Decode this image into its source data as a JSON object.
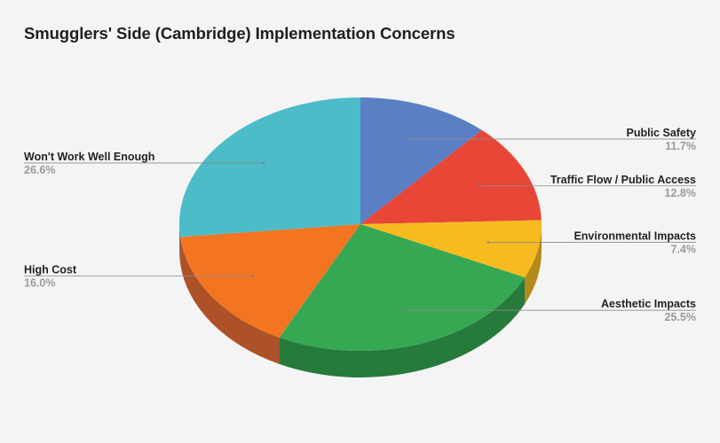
{
  "title": "Smugglers' Side (Cambridge) Implementation Concerns",
  "chart_data": {
    "type": "pie",
    "title": "Smugglers' Side (Cambridge) Implementation Concerns",
    "style": "3d",
    "legend": "none",
    "start_angle": "12 o'clock, clockwise",
    "slices": [
      {
        "label": "Public Safety",
        "value": 11.7,
        "value_label": "11.7%",
        "color": "#5b7fc5",
        "side_color": "#3f5c97"
      },
      {
        "label": "Traffic Flow / Public Access",
        "value": 12.8,
        "value_label": "12.8%",
        "color": "#e84637",
        "side_color": "#a8322a"
      },
      {
        "label": "Environmental Impacts",
        "value": 7.4,
        "value_label": "7.4%",
        "color": "#f7bb1f",
        "side_color": "#b58a1a"
      },
      {
        "label": "Aesthetic Impacts",
        "value": 25.5,
        "value_label": "25.5%",
        "color": "#36a853",
        "side_color": "#267a3b"
      },
      {
        "label": "High Cost",
        "value": 16.0,
        "value_label": "16.0%",
        "color": "#f47521",
        "side_color": "#ad5228"
      },
      {
        "label": "Won't Work Well Enough",
        "value": 26.6,
        "value_label": "26.6%",
        "color": "#4bbcc8",
        "side_color": "#338891"
      }
    ]
  }
}
